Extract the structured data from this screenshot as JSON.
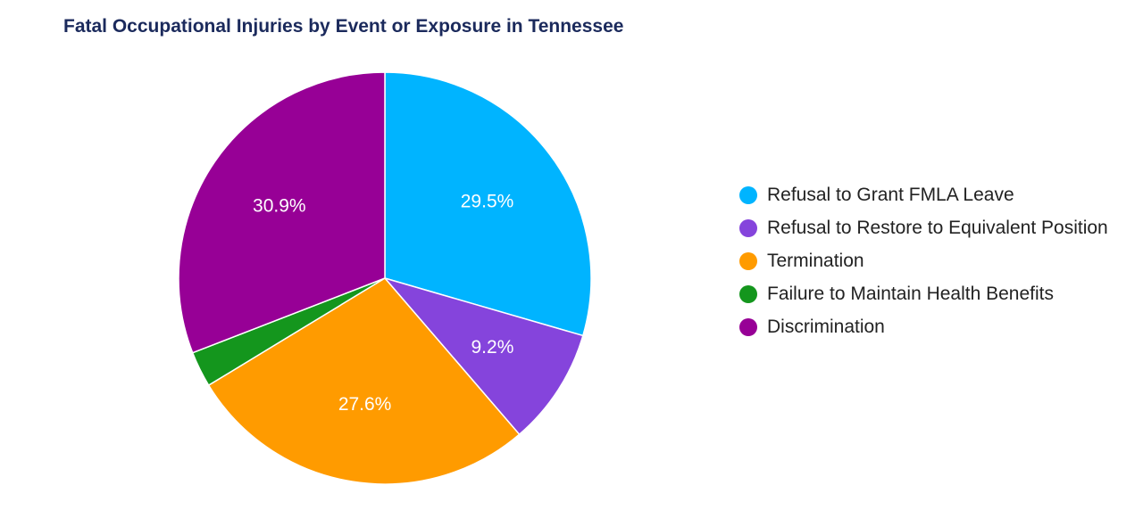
{
  "chart_data": {
    "type": "pie",
    "title": "Fatal Occupational Injuries by Event or Exposure in Tennessee",
    "slices": [
      {
        "label": "Refusal to Grant FMLA Leave",
        "value": 29.5,
        "display": "29.5%",
        "color": "#00b4ff"
      },
      {
        "label": "Refusal to Restore to Equivalent Position",
        "value": 9.2,
        "display": "9.2%",
        "color": "#8544dc"
      },
      {
        "label": "Termination",
        "value": 27.6,
        "display": "27.6%",
        "color": "#ff9b00"
      },
      {
        "label": "Failure to Maintain Health Benefits",
        "value": 2.8,
        "display": "",
        "color": "#14961d"
      },
      {
        "label": "Discrimination",
        "value": 30.9,
        "display": "30.9%",
        "color": "#970096"
      }
    ],
    "legend_position": "right"
  }
}
